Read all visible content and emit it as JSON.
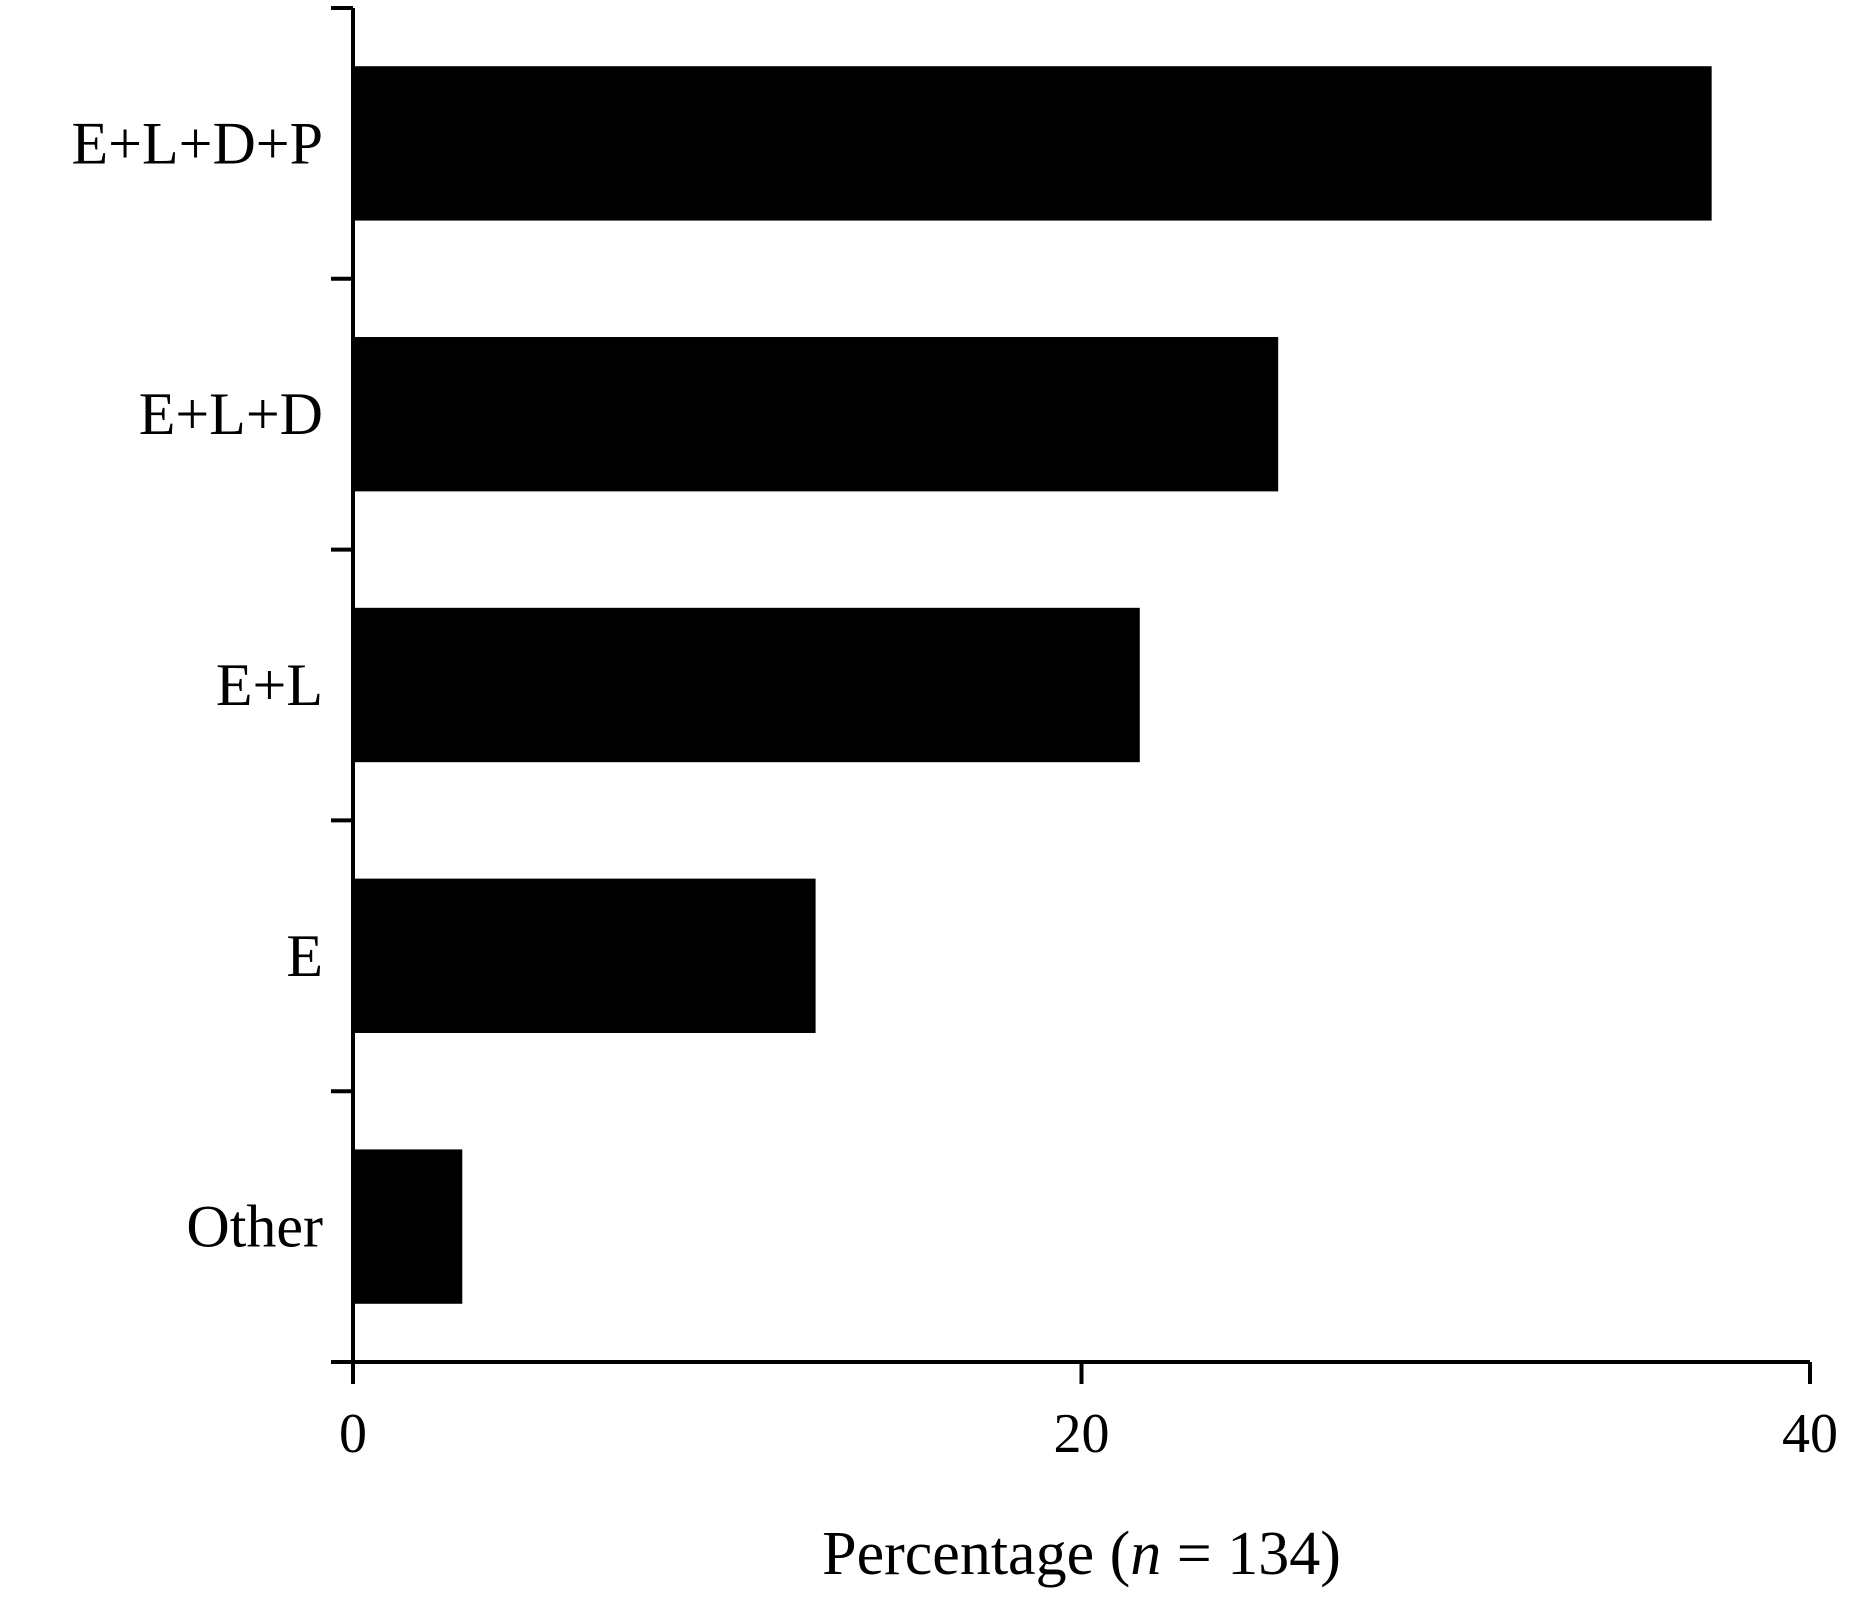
{
  "chart_data": {
    "type": "bar",
    "orientation": "horizontal",
    "categories": [
      "E+L+D+P",
      "E+L+D",
      "E+L",
      "E",
      "Other"
    ],
    "values": [
      37.3,
      25.4,
      21.6,
      12.7,
      3.0
    ],
    "xlabel": "Percentage (n = 134)",
    "xlabel_parts": {
      "before": "Percentage (",
      "italic": "n",
      "after": " = 134)"
    },
    "ylabel": "",
    "xlim": [
      0,
      40
    ],
    "xticks": [
      0,
      20,
      40
    ],
    "xtick_labels": [
      "0",
      "20",
      "40"
    ],
    "grid": false,
    "legend": "none",
    "bar_color": "#000000",
    "axis_color": "#000000"
  }
}
